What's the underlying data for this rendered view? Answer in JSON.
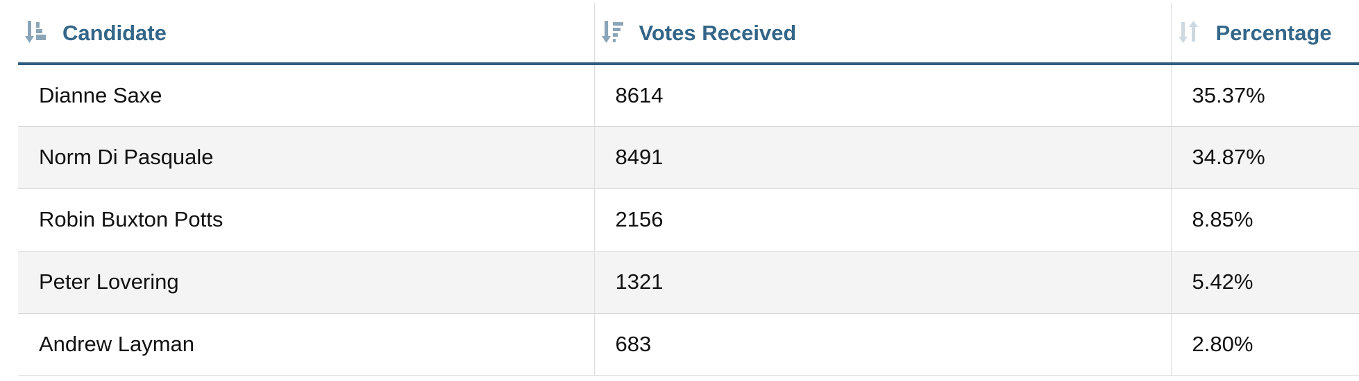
{
  "table": {
    "columns": [
      {
        "label": "Candidate",
        "sort_icon": "sort-alpha-desc-icon",
        "sort_state": "active"
      },
      {
        "label": "Votes Received",
        "sort_icon": "sort-amount-desc-icon",
        "sort_state": "active"
      },
      {
        "label": "Percentage",
        "sort_icon": "sort-unsorted-icon",
        "sort_state": "inactive"
      }
    ],
    "rows": [
      {
        "candidate": "Dianne Saxe",
        "votes": "8614",
        "percentage": "35.37%"
      },
      {
        "candidate": "Norm Di Pasquale",
        "votes": "8491",
        "percentage": "34.87%"
      },
      {
        "candidate": "Robin Buxton Potts",
        "votes": "2156",
        "percentage": "8.85%"
      },
      {
        "candidate": "Peter Lovering",
        "votes": "1321",
        "percentage": "5.42%"
      },
      {
        "candidate": "Andrew Layman",
        "votes": "683",
        "percentage": "2.80%"
      }
    ]
  },
  "colors": {
    "header_text": "#336688",
    "header_rule": "#2f5d80",
    "icon_active": "#8aa4b8",
    "icon_inactive": "#cdd8e0",
    "row_alt": "#f4f4f4",
    "row_border": "#d6d6d6"
  }
}
